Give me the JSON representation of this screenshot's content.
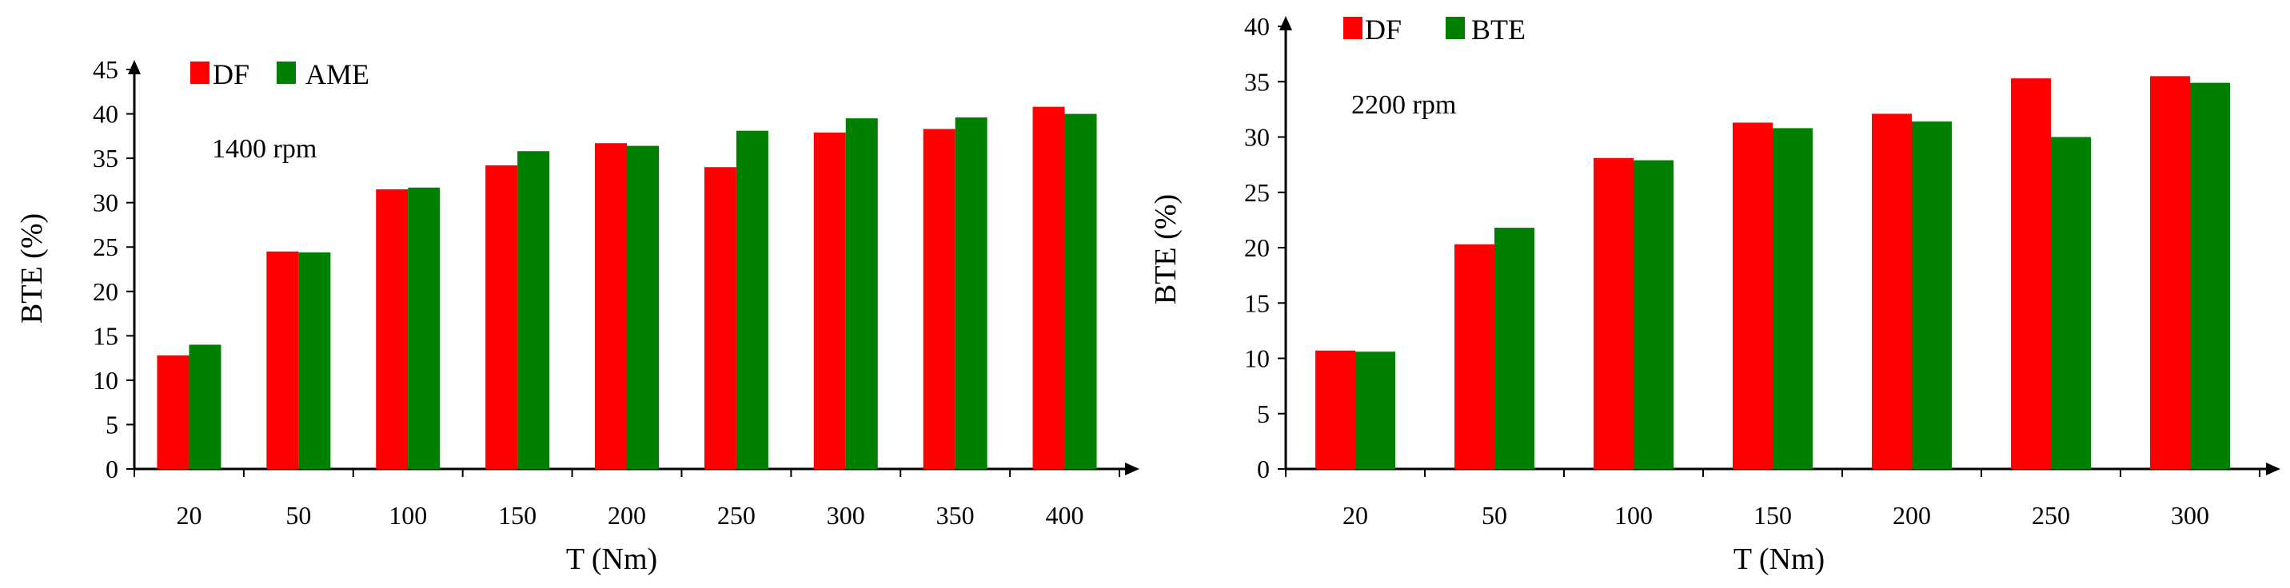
{
  "colors": {
    "df": "#ff0000",
    "second": "#008000",
    "axis": "#000000"
  },
  "chart_data": [
    {
      "type": "bar",
      "xlabel": "T (Nm)",
      "ylabel": "BTE (%)",
      "annotation": "1400 rpm",
      "ylim": [
        0,
        45
      ],
      "ytick_step": 5,
      "grid": false,
      "legend": "top-left",
      "categories": [
        "20",
        "50",
        "100",
        "150",
        "200",
        "250",
        "300",
        "350",
        "400"
      ],
      "series": [
        {
          "name": "DF",
          "values": [
            12.8,
            24.5,
            31.5,
            34.2,
            36.7,
            34.0,
            37.9,
            38.3,
            40.8
          ]
        },
        {
          "name": "AME",
          "values": [
            14.0,
            24.4,
            31.7,
            35.8,
            36.4,
            38.1,
            39.5,
            39.6,
            40.0
          ]
        }
      ]
    },
    {
      "type": "bar",
      "xlabel": "T (Nm)",
      "ylabel": "BTE (%)",
      "annotation": "2200 rpm",
      "ylim": [
        0,
        40
      ],
      "ytick_step": 5,
      "grid": false,
      "legend": "top-left",
      "categories": [
        "20",
        "50",
        "100",
        "150",
        "200",
        "250",
        "300"
      ],
      "series": [
        {
          "name": "DF",
          "values": [
            10.7,
            20.3,
            28.1,
            31.3,
            32.1,
            35.3,
            35.5
          ]
        },
        {
          "name": "BTE",
          "values": [
            10.6,
            21.8,
            27.9,
            30.8,
            31.4,
            30.0,
            34.9
          ]
        }
      ]
    }
  ]
}
